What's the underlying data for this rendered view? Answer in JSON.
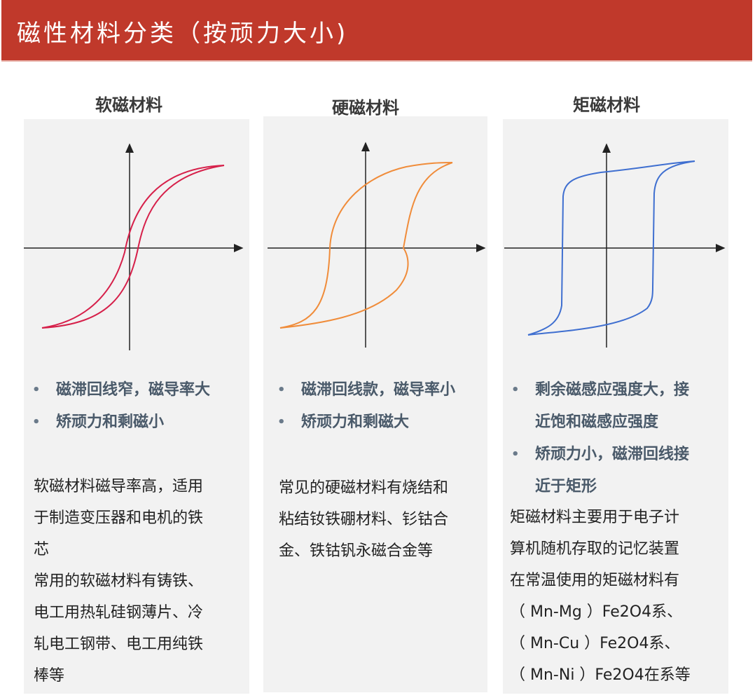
{
  "header": {
    "title": "磁性材料分类（按顽力大小)"
  },
  "colors": {
    "header_bg": "#c0392b",
    "soft_curve": "#d6204a",
    "hard_curve": "#f08c3a",
    "rect_curve": "#3f6fd0"
  },
  "columns": [
    {
      "title": "软磁材料",
      "bullets": [
        "磁滞回线窄，磁导率大",
        "矫顽力和剩磁小"
      ],
      "description_lines": [
        "软磁材料磁导率高，适用",
        "于制造变压器和电机的铁",
        "芯",
        "常用的软磁材料有铸铁、",
        "电工用热轧硅钢薄片、冷",
        "轧电工钢带、电工用纯铁",
        "棒等"
      ]
    },
    {
      "title": "硬磁材料",
      "bullets": [
        "磁滞回线款，磁导率小",
        "矫顽力和剩磁大"
      ],
      "description_lines": [
        "常见的硬磁材料有烧结和",
        "粘结钕铁硼材料、钐钴合",
        "金、铁钴钒永磁合金等"
      ]
    },
    {
      "title": "矩磁材料",
      "bullets": [
        "剩余磁感应强度大，接近饱和磁感应强度",
        "矫顽力小，磁滞回线接近于矩形"
      ],
      "bullet_lines": [
        [
          "剩余磁感应强度大，接",
          "近饱和磁感应强度"
        ],
        [
          "矫顽力小，磁滞回线接",
          "近于矩形"
        ]
      ],
      "description_lines": [
        "矩磁材料主要用于电子计",
        "算机随机存取的记忆装置",
        "在常温使用的矩磁材料有",
        "（ Mn-Mg ）Fe2O4系、",
        "（ Mn-Cu ）Fe2O4系、",
        "（ Mn-Ni ）Fe2O4在系等"
      ]
    }
  ]
}
